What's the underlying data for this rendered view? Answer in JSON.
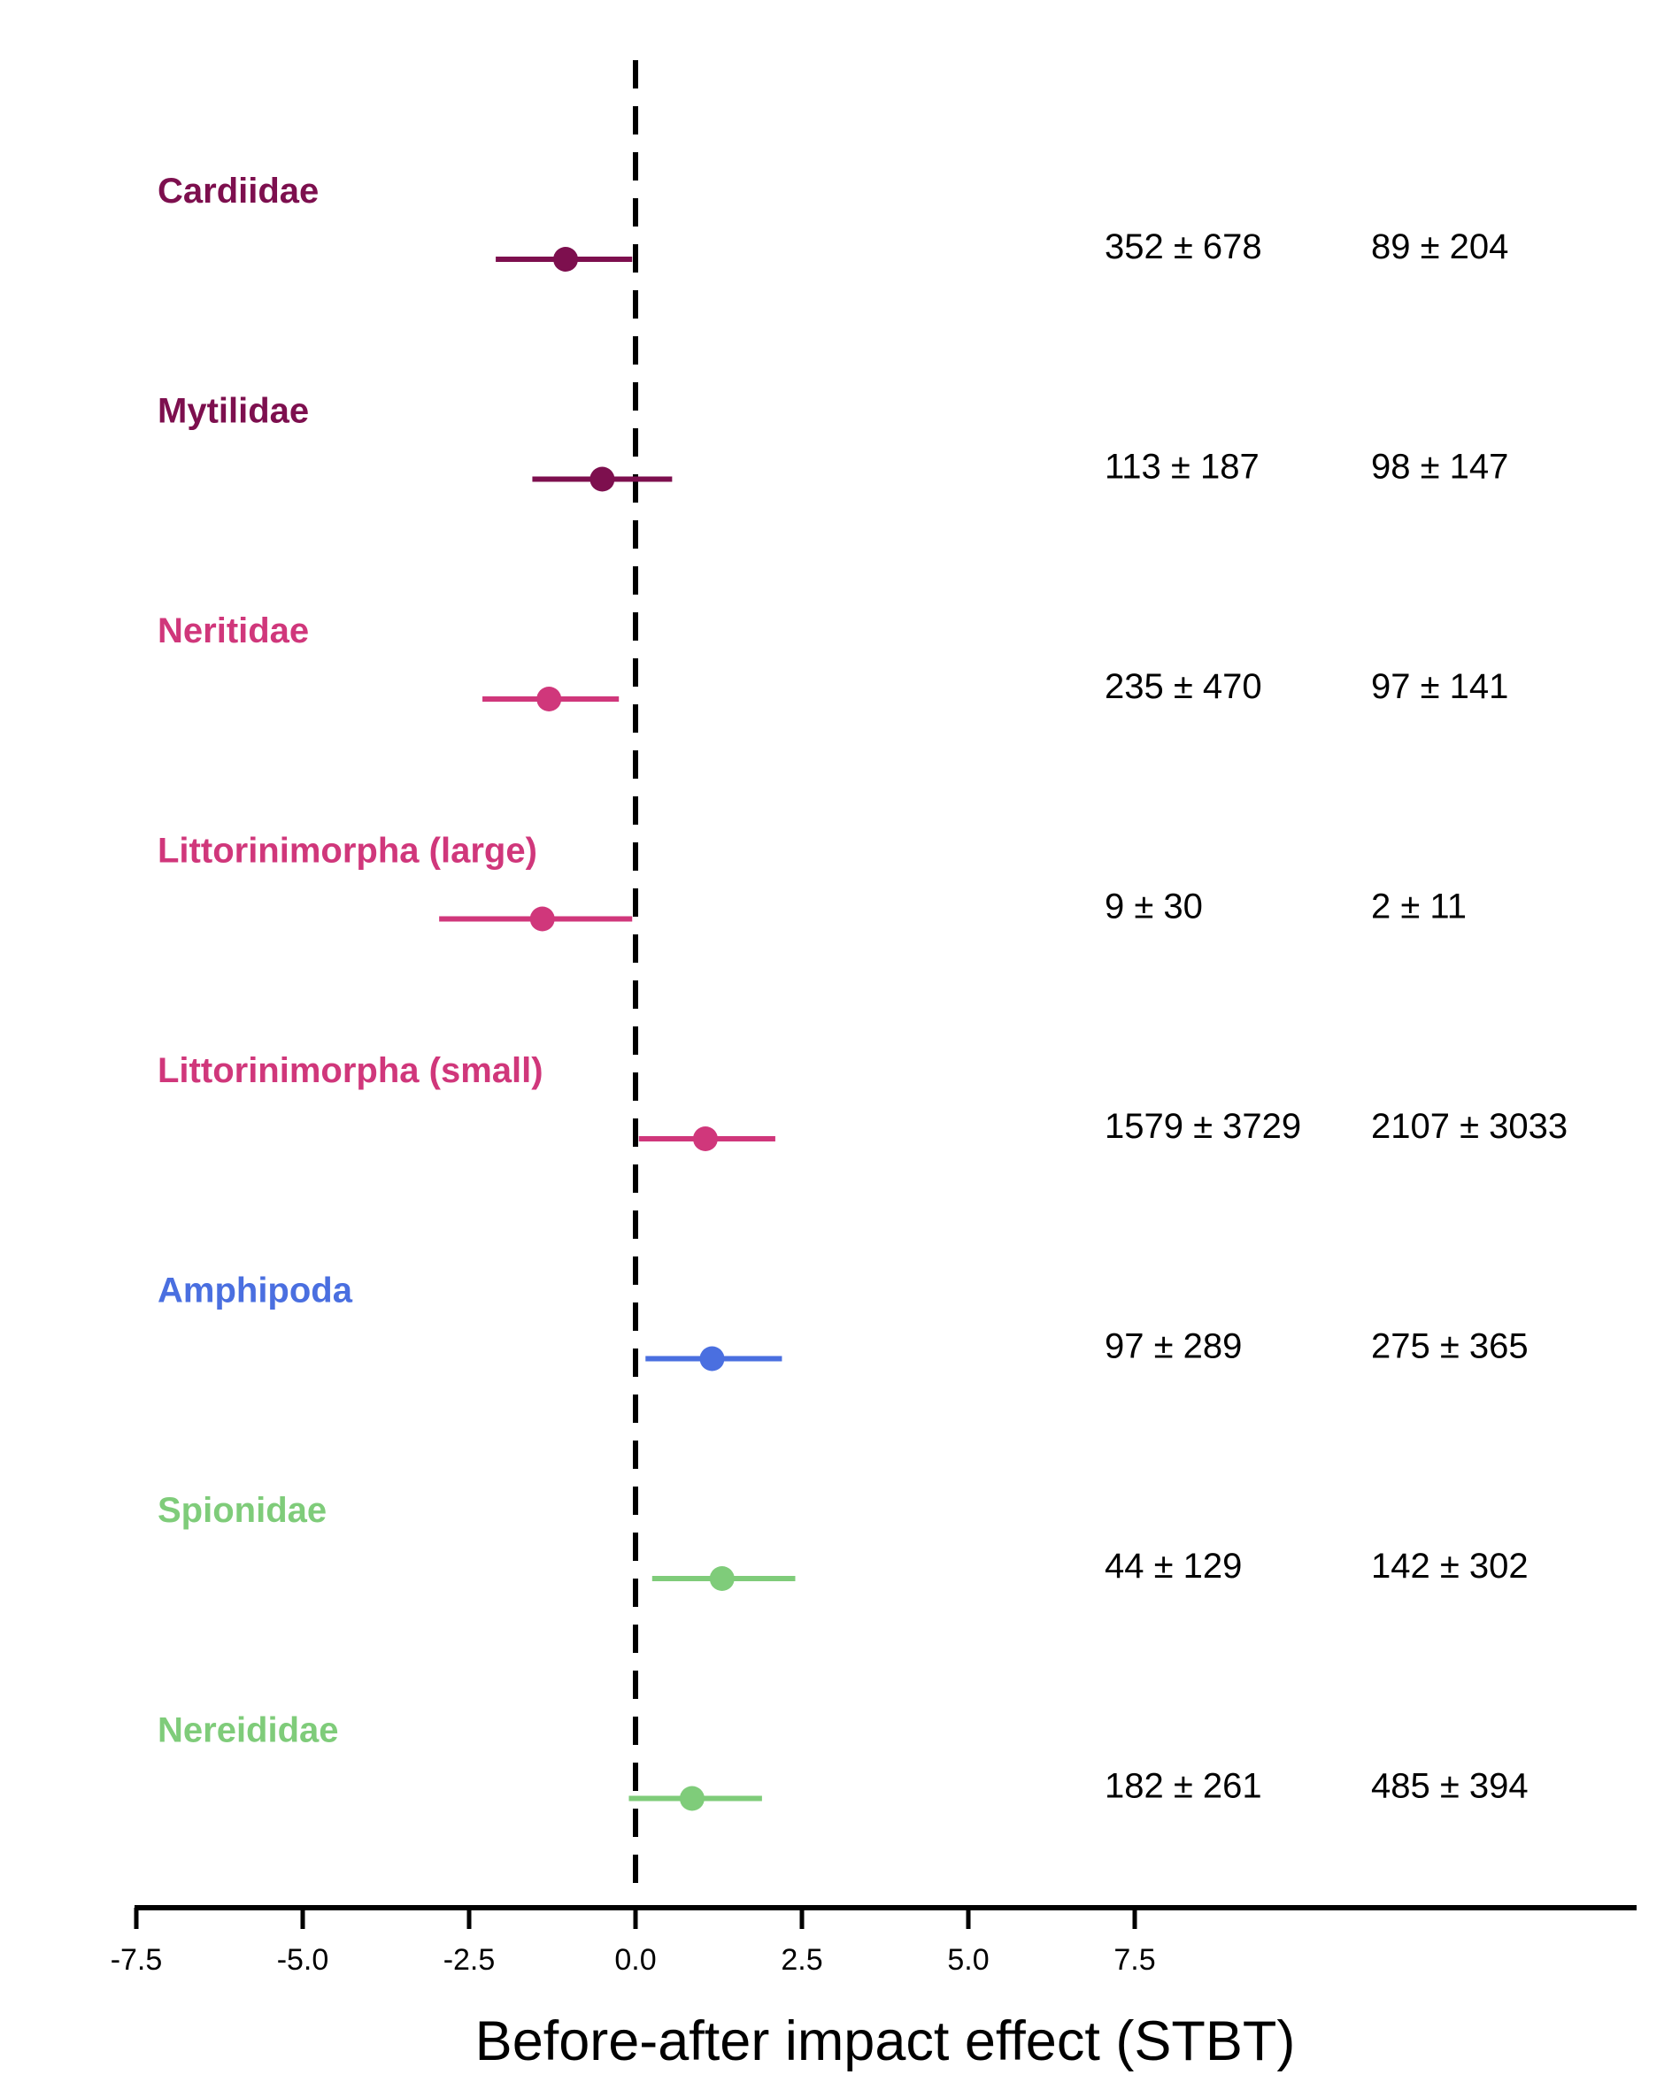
{
  "chart_data": {
    "type": "forest",
    "xlabel": "Before-after impact effect (STBT)",
    "xlim": [
      -7.5,
      7.5
    ],
    "x_ticks": [
      "-7.5",
      "-5.0",
      "-2.5",
      "0.0",
      "2.5",
      "5.0",
      "7.5"
    ],
    "x_tick_values": [
      -7.5,
      -5.0,
      -2.5,
      0.0,
      2.5,
      5.0,
      7.5
    ],
    "reference_line": 0.0,
    "rows": [
      {
        "name": "Cardiidae",
        "color": "#7d0f4e",
        "estimate": -1.05,
        "lower": -2.1,
        "upper": -0.05,
        "before": "352 ± 678",
        "after": "89 ± 204"
      },
      {
        "name": "Mytilidae",
        "color": "#7d0f4e",
        "estimate": -0.5,
        "lower": -1.55,
        "upper": 0.55,
        "before": "113 ± 187",
        "after": "98 ± 147"
      },
      {
        "name": "Neritidae",
        "color": "#d0377b",
        "estimate": -1.3,
        "lower": -2.3,
        "upper": -0.25,
        "before": "235 ± 470",
        "after": "97 ± 141"
      },
      {
        "name": "Littorinimorpha (large)",
        "color": "#d0377b",
        "estimate": -1.4,
        "lower": -2.95,
        "upper": -0.05,
        "before": "9 ± 30",
        "after": "2 ± 11"
      },
      {
        "name": "Littorinimorpha (small)",
        "color": "#d0377b",
        "estimate": 1.05,
        "lower": 0.05,
        "upper": 2.1,
        "before": "1579 ± 3729",
        "after": "2107 ± 3033"
      },
      {
        "name": "Amphipoda",
        "color": "#4a6fe0",
        "estimate": 1.15,
        "lower": 0.15,
        "upper": 2.2,
        "before": "97 ± 289",
        "after": "275 ± 365"
      },
      {
        "name": "Spionidae",
        "color": "#7fcc7a",
        "estimate": 1.3,
        "lower": 0.25,
        "upper": 2.4,
        "before": "44 ± 129",
        "after": "142 ± 302"
      },
      {
        "name": "Nereididae",
        "color": "#7fcc7a",
        "estimate": 0.85,
        "lower": -0.1,
        "upper": 1.9,
        "before": "182 ± 261",
        "after": "485 ± 394"
      }
    ]
  }
}
